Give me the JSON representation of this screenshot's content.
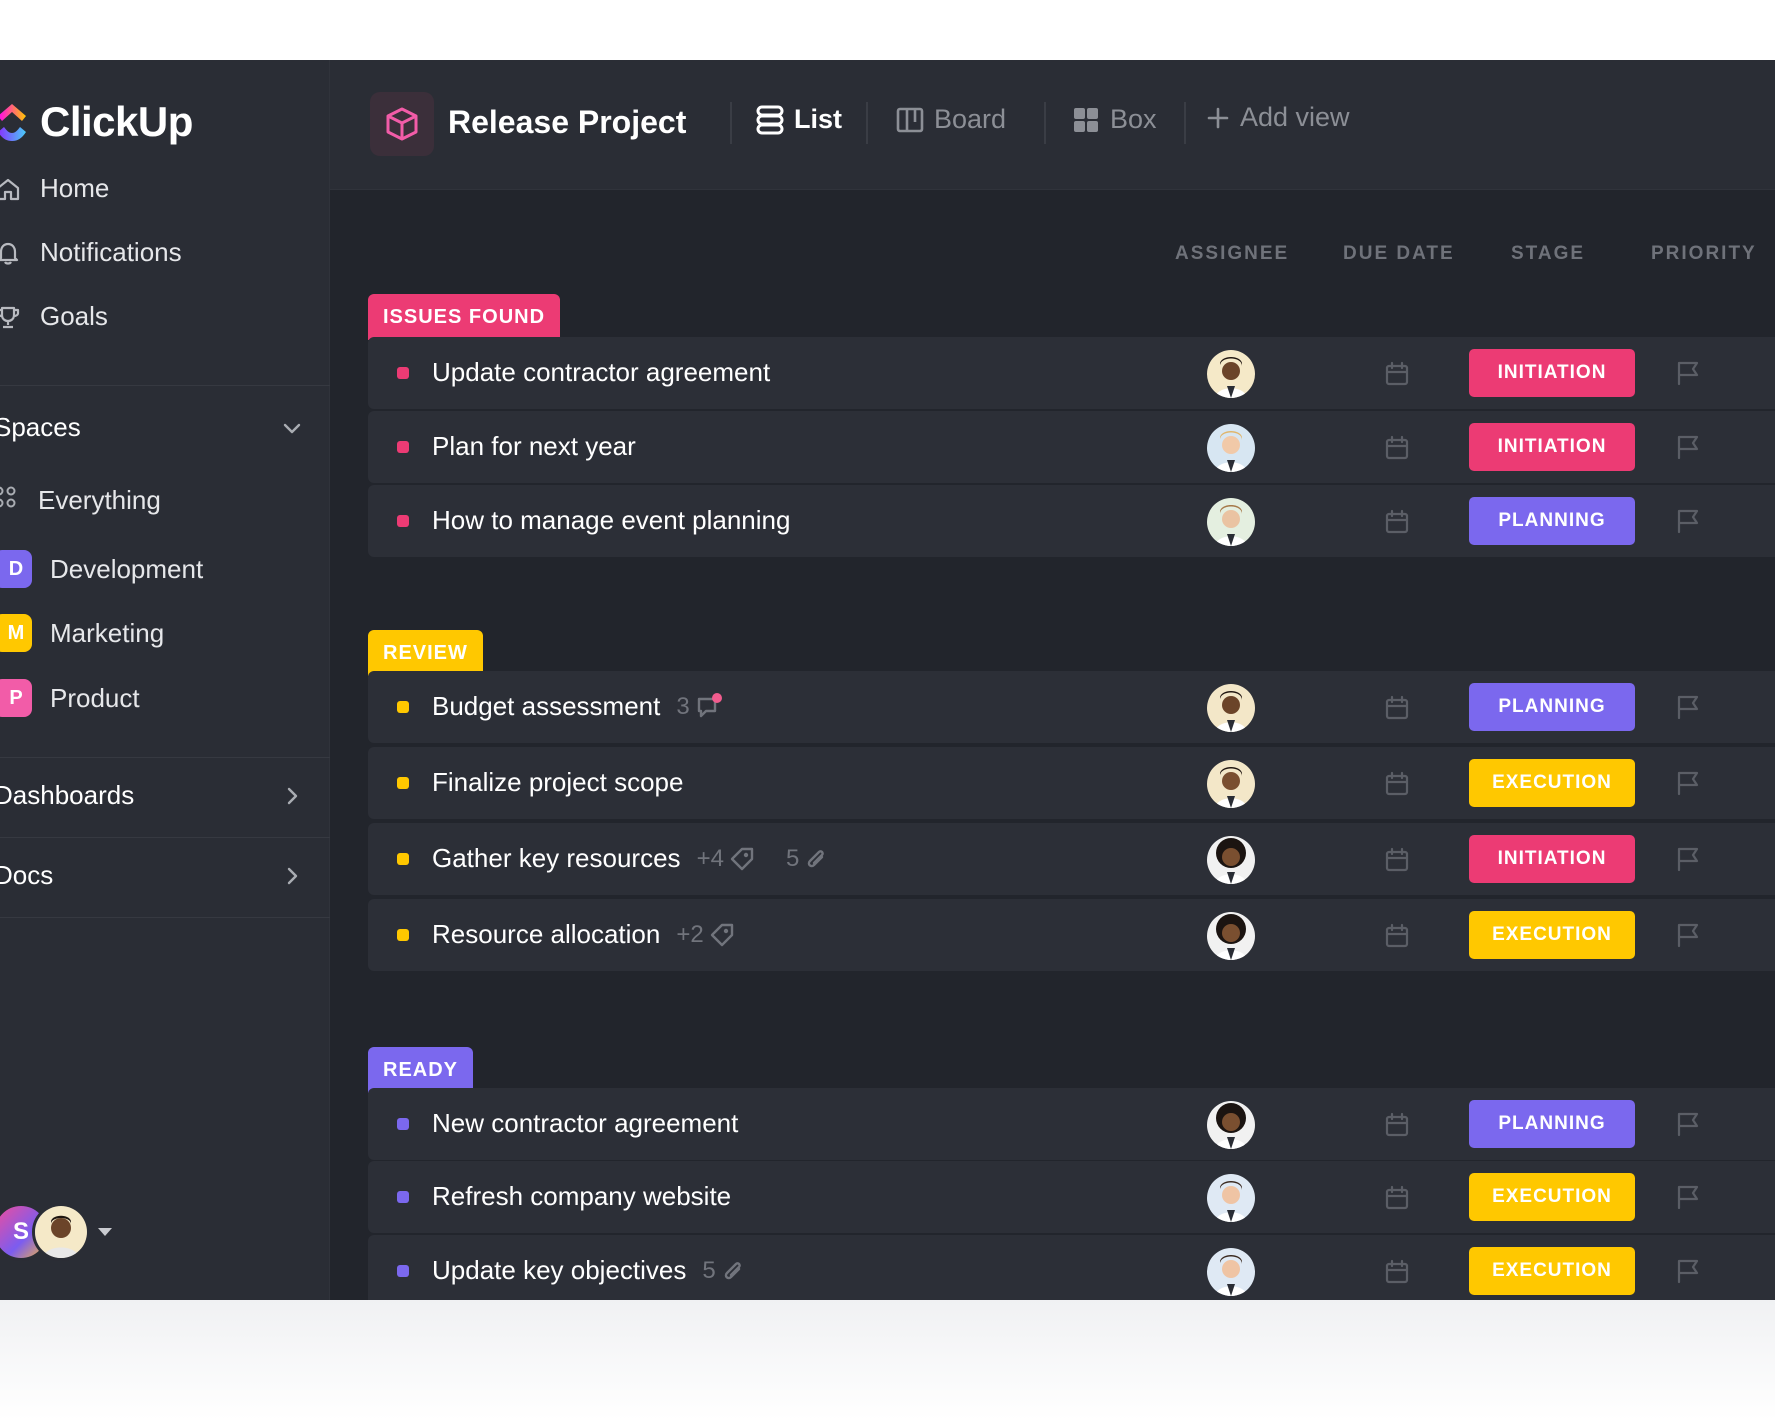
{
  "brand": {
    "name": "ClickUp"
  },
  "nav": [
    {
      "label": "Home",
      "icon": "home-icon"
    },
    {
      "label": "Notifications",
      "icon": "bell-icon"
    },
    {
      "label": "Goals",
      "icon": "trophy-icon"
    }
  ],
  "spaces": {
    "title": "Spaces",
    "everything": "Everything",
    "items": [
      {
        "letter": "D",
        "label": "Development",
        "color": "#7b68ee"
      },
      {
        "letter": "M",
        "label": "Marketing",
        "color": "#ffc800"
      },
      {
        "letter": "P",
        "label": "Product",
        "color": "#f25ca8"
      }
    ]
  },
  "dashboards": "Dashboards",
  "docs": "Docs",
  "user": {
    "initial": "S"
  },
  "header": {
    "project_title": "Release Project",
    "views": [
      "List",
      "Board",
      "Box"
    ],
    "add_view": "Add view"
  },
  "columns": [
    "ASSIGNEE",
    "DUE DATE",
    "STAGE",
    "PRIORITY"
  ],
  "stage_colors": {
    "INITIATION": "#ec3b74",
    "PLANNING": "#7b68ee",
    "EXECUTION": "#ffc800"
  },
  "groups": [
    {
      "label": "ISSUES FOUND",
      "color": "#ec3b74",
      "tasks": [
        {
          "title": "Update contractor agreement",
          "stage": "INITIATION"
        },
        {
          "title": "Plan for next year",
          "stage": "INITIATION"
        },
        {
          "title": "How to manage event planning",
          "stage": "PLANNING"
        }
      ]
    },
    {
      "label": "REVIEW",
      "color": "#ffc800",
      "tasks": [
        {
          "title": "Budget assessment",
          "stage": "PLANNING",
          "comments": "3"
        },
        {
          "title": "Finalize project scope",
          "stage": "EXECUTION"
        },
        {
          "title": "Gather key resources",
          "stage": "INITIATION",
          "tags": "+4",
          "attachments": "5"
        },
        {
          "title": "Resource allocation",
          "stage": "EXECUTION",
          "tags": "+2"
        }
      ]
    },
    {
      "label": "READY",
      "color": "#7b68ee",
      "tasks": [
        {
          "title": "New contractor agreement",
          "stage": "PLANNING"
        },
        {
          "title": "Refresh company website",
          "stage": "EXECUTION"
        },
        {
          "title": "Update key objectives",
          "stage": "EXECUTION",
          "attachments": "5"
        }
      ]
    }
  ]
}
